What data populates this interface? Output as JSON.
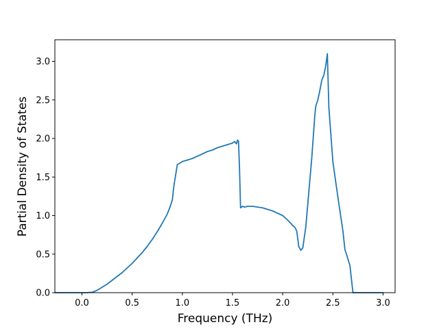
{
  "chart_data": {
    "type": "line",
    "title": "",
    "xlabel": "Frequency (THz)",
    "ylabel": "Partial Density of States",
    "xlim": [
      -0.27,
      3.12
    ],
    "ylim": [
      0.0,
      3.28
    ],
    "grid": false,
    "line_color": "#1f77b4",
    "x_ticks": [
      0.0,
      0.5,
      1.0,
      1.5,
      2.0,
      2.5,
      3.0
    ],
    "x_tick_labels": [
      "0.0",
      "0.5",
      "1.0",
      "1.5",
      "2.0",
      "2.5",
      "3.0"
    ],
    "y_ticks": [
      0.0,
      0.5,
      1.0,
      1.5,
      2.0,
      2.5,
      3.0
    ],
    "y_tick_labels": [
      "0.0",
      "0.5",
      "1.0",
      "1.5",
      "2.0",
      "2.5",
      "3.0"
    ],
    "series": [
      {
        "x": [
          -0.27,
          0.0,
          0.05,
          0.1,
          0.15,
          0.2,
          0.25,
          0.3,
          0.35,
          0.4,
          0.45,
          0.5,
          0.55,
          0.6,
          0.65,
          0.7,
          0.75,
          0.8,
          0.85,
          0.88,
          0.9,
          0.91,
          0.92,
          0.95,
          1.0,
          1.05,
          1.1,
          1.15,
          1.2,
          1.25,
          1.3,
          1.35,
          1.4,
          1.45,
          1.5,
          1.52,
          1.54,
          1.55,
          1.56,
          1.57,
          1.58,
          1.6,
          1.62,
          1.65,
          1.7,
          1.75,
          1.8,
          1.85,
          1.9,
          1.95,
          2.0,
          2.05,
          2.08,
          2.1,
          2.12,
          2.14,
          2.16,
          2.18,
          2.2,
          2.23,
          2.26,
          2.29,
          2.32,
          2.33,
          2.35,
          2.37,
          2.39,
          2.41,
          2.43,
          2.445,
          2.46,
          2.48,
          2.5,
          2.53,
          2.56,
          2.6,
          2.62,
          2.64,
          2.67,
          2.7,
          2.75,
          3.0
        ],
        "y": [
          0.0,
          0.0,
          0.0,
          0.005,
          0.03,
          0.07,
          0.11,
          0.16,
          0.21,
          0.26,
          0.32,
          0.38,
          0.45,
          0.52,
          0.6,
          0.69,
          0.79,
          0.9,
          1.02,
          1.12,
          1.2,
          1.32,
          1.42,
          1.66,
          1.7,
          1.72,
          1.74,
          1.77,
          1.8,
          1.83,
          1.85,
          1.88,
          1.9,
          1.92,
          1.94,
          1.96,
          1.93,
          1.98,
          1.96,
          1.6,
          1.1,
          1.12,
          1.11,
          1.12,
          1.12,
          1.11,
          1.1,
          1.08,
          1.06,
          1.03,
          1.0,
          0.94,
          0.9,
          0.87,
          0.85,
          0.8,
          0.6,
          0.55,
          0.58,
          0.85,
          1.3,
          1.75,
          2.3,
          2.42,
          2.5,
          2.62,
          2.76,
          2.82,
          2.95,
          3.1,
          2.4,
          2.05,
          1.7,
          1.42,
          1.15,
          0.8,
          0.56,
          0.48,
          0.35,
          0.0,
          0.0,
          0.0
        ]
      }
    ]
  }
}
